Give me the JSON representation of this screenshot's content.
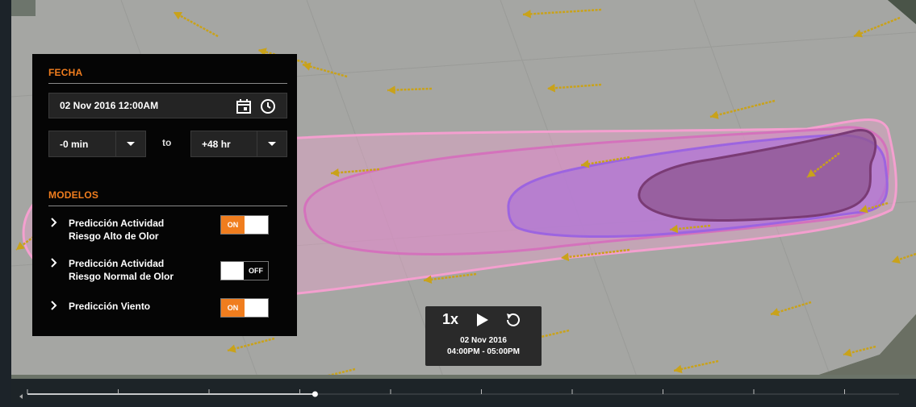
{
  "fecha": {
    "title": "FECHA",
    "date": "02 Nov 2016  12:00AM",
    "calendar_icon": "calendar-icon",
    "clock_icon": "clock-icon"
  },
  "range": {
    "from": "-0 min",
    "to_label": "to",
    "to": "+48 hr"
  },
  "modelos": {
    "title": "MODELOS",
    "items": [
      {
        "line1": "Predicción Actividad",
        "line2": "Riesgo Alto de Olor",
        "state": "ON"
      },
      {
        "line1": "Predicción Actividad",
        "line2": "Riesgo Normal de Olor",
        "state": "OFF"
      },
      {
        "line1": "Predicción Viento",
        "line2": "",
        "state": "ON"
      }
    ]
  },
  "player": {
    "speed": "1x",
    "date": "02 Nov 2016",
    "time_range": "04:00PM - 05:00PM"
  },
  "timeline": {
    "progress": 0.33
  },
  "colors": {
    "accent": "#f07d1e",
    "panel_bg": "#050505",
    "wind_arrow": "#c9a21a",
    "plume_outer": "#f09ac8",
    "plume_mid": "#d58bc4",
    "plume_inner": "#a86fd6",
    "plume_core": "#8e5590"
  }
}
